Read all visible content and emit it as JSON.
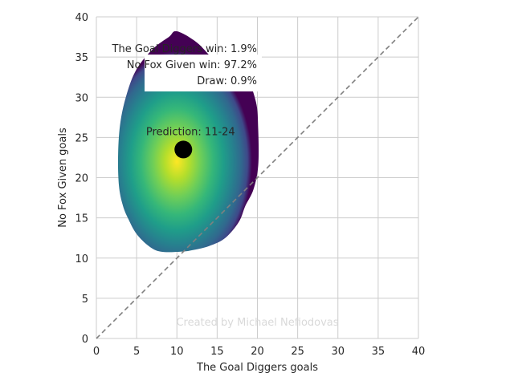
{
  "chart_data": {
    "type": "heatmap",
    "xlabel": "The Goal Diggers goals",
    "ylabel": "No Fox Given goals",
    "xlim": [
      0,
      40
    ],
    "ylim": [
      0,
      40
    ],
    "x_ticks": [
      "0",
      "5",
      "10",
      "15",
      "20",
      "25",
      "30",
      "35",
      "40"
    ],
    "y_ticks": [
      "0",
      "5",
      "10",
      "15",
      "20",
      "25",
      "30",
      "35",
      "40"
    ],
    "grid": true,
    "colormap": "viridis",
    "density": {
      "peak": [
        10,
        22
      ],
      "outline": [
        [
          10,
          38.2
        ],
        [
          12.5,
          36.8
        ],
        [
          15,
          34.3
        ],
        [
          18.5,
          32.3
        ],
        [
          19.8,
          29.5
        ],
        [
          20.1,
          26
        ],
        [
          20.1,
          21.5
        ],
        [
          19.5,
          18.5
        ],
        [
          18.5,
          16.5
        ],
        [
          17.7,
          14.5
        ],
        [
          16,
          12.5
        ],
        [
          14,
          11.5
        ],
        [
          12,
          11
        ],
        [
          10.5,
          10.8
        ],
        [
          8,
          10.8
        ],
        [
          6.5,
          11.5
        ],
        [
          5,
          13
        ],
        [
          4,
          14.8
        ],
        [
          3.3,
          16.5
        ],
        [
          2.8,
          19
        ],
        [
          2.7,
          23
        ],
        [
          3,
          27
        ],
        [
          3.8,
          30.5
        ],
        [
          5,
          33.5
        ],
        [
          7,
          36
        ],
        [
          9,
          37.5
        ]
      ]
    },
    "prediction": {
      "x": 10.8,
      "y": 23.5,
      "label": "Prediction: 11-24"
    },
    "reference_line": {
      "from": [
        0,
        0
      ],
      "to": [
        40,
        40
      ],
      "style": "dashed"
    },
    "annotations": [
      "The Goal Diggers win: 1.9%",
      "No Fox Given win: 97.2%",
      "Draw: 0.9%"
    ],
    "watermark": "Created by Michael Nefiodovas",
    "colors": {
      "background": "#ffffff",
      "grid": "#cccccc",
      "text": "#262626",
      "reference_line": "#808080",
      "prediction_marker": "#000000",
      "watermark": "#d9d9d9"
    }
  }
}
